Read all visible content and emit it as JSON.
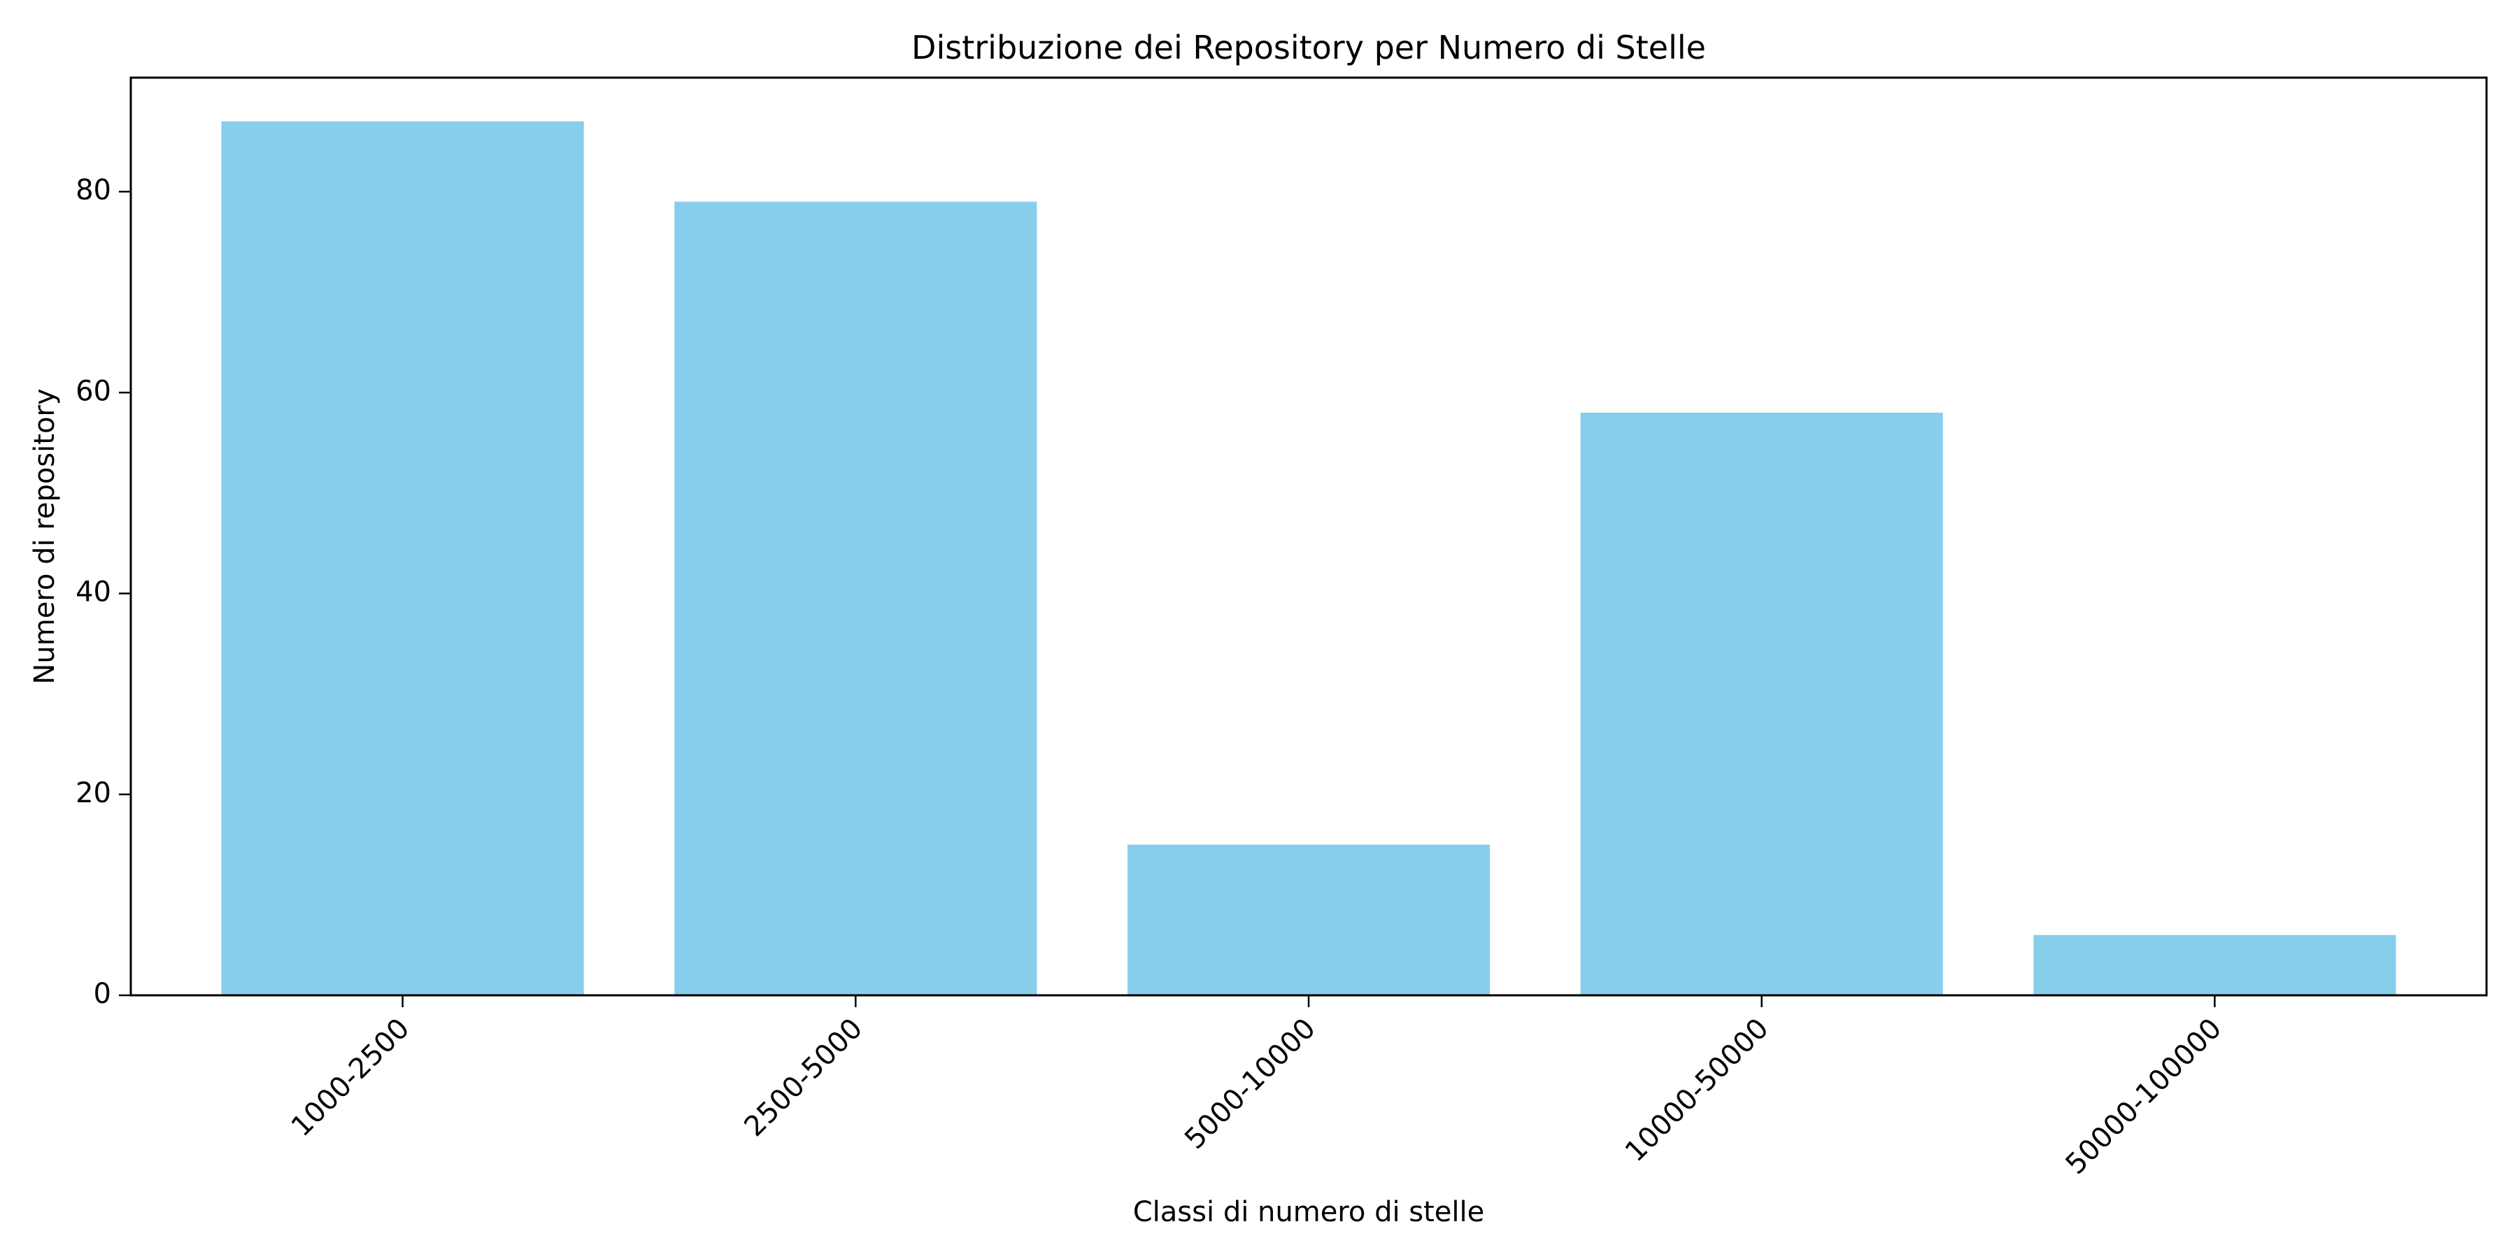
{
  "chart_data": {
    "type": "bar",
    "title": "Distribuzione dei Repository per Numero di Stelle",
    "xlabel": "Classi di numero di stelle",
    "ylabel": "Numero di repository",
    "categories": [
      "1000-2500",
      "2500-5000",
      "5000-10000",
      "10000-50000",
      "50000-100000"
    ],
    "values": [
      87,
      79,
      15,
      58,
      6
    ],
    "ylim": [
      0,
      91.35
    ],
    "yticks": [
      0,
      20,
      40,
      60,
      80
    ],
    "grid": false,
    "legend": "none",
    "colors": {
      "bar": "#87ceeb",
      "axes": "#000000",
      "background": "#ffffff"
    }
  }
}
